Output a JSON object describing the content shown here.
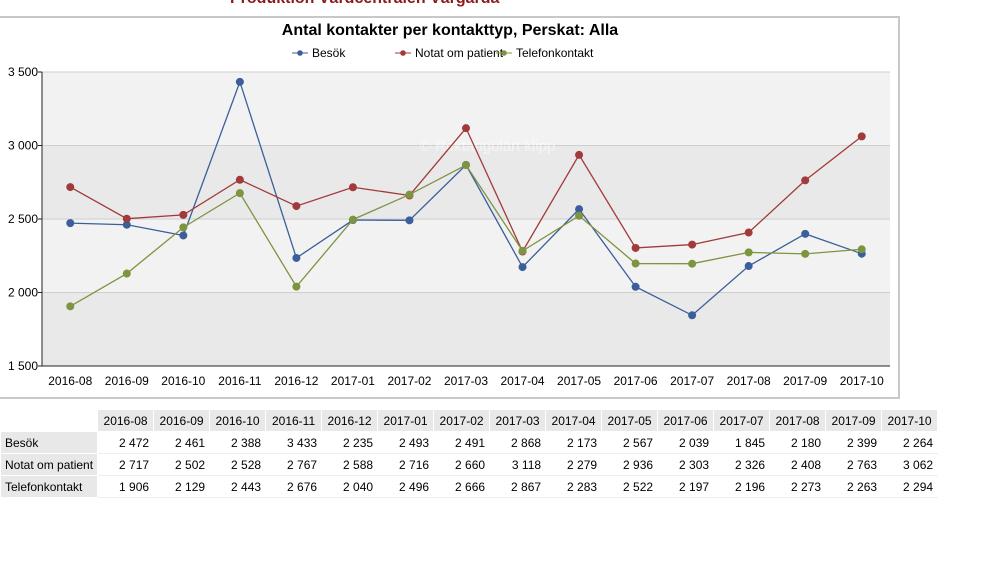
{
  "page": {
    "top_title": "Produktion Vårdcentralen Vårgårda"
  },
  "chart_data": {
    "type": "line",
    "title": "Antal kontakter per kontakttyp, Perskat: Alla",
    "categories": [
      "2016-08",
      "2016-09",
      "2016-10",
      "2016-11",
      "2016-12",
      "2017-01",
      "2017-02",
      "2017-03",
      "2017-04",
      "2017-05",
      "2017-06",
      "2017-07",
      "2017-08",
      "2017-09",
      "2017-10"
    ],
    "ylim": [
      1500,
      3500
    ],
    "yticks": [
      1500,
      2000,
      2500,
      3000,
      3500
    ],
    "ytick_labels": [
      "1 500",
      "2 000",
      "2 500",
      "3 000",
      "3 500"
    ],
    "grid": true,
    "legend_position": "top-center",
    "watermark": "© Rektangulärt klipp",
    "series": [
      {
        "name": "Besök",
        "color": "#3a5f9a",
        "values": [
          2472,
          2461,
          2388,
          3433,
          2235,
          2493,
          2491,
          2868,
          2173,
          2567,
          2039,
          1845,
          2180,
          2399,
          2264
        ]
      },
      {
        "name": "Notat om patient",
        "color": "#a13a3a",
        "values": [
          2717,
          2502,
          2528,
          2767,
          2588,
          2716,
          2660,
          3118,
          2279,
          2936,
          2303,
          2326,
          2408,
          2763,
          3062
        ]
      },
      {
        "name": "Telefonkontakt",
        "color": "#7d9440",
        "values": [
          1906,
          2129,
          2443,
          2676,
          2040,
          2496,
          2666,
          2867,
          2283,
          2522,
          2197,
          2196,
          2273,
          2263,
          2294
        ]
      }
    ]
  },
  "table": {
    "columns": [
      "2016-08",
      "2016-09",
      "2016-10",
      "2016-11",
      "2016-12",
      "2017-01",
      "2017-02",
      "2017-03",
      "2017-04",
      "2017-05",
      "2017-06",
      "2017-07",
      "2017-08",
      "2017-09",
      "2017-10"
    ],
    "rows": [
      {
        "label": "Besök",
        "cells": [
          "2 472",
          "2 461",
          "2 388",
          "3 433",
          "2 235",
          "2 493",
          "2 491",
          "2 868",
          "2 173",
          "2 567",
          "2 039",
          "1 845",
          "2 180",
          "2 399",
          "2 264"
        ]
      },
      {
        "label": "Notat om patient",
        "cells": [
          "2 717",
          "2 502",
          "2 528",
          "2 767",
          "2 588",
          "2 716",
          "2 660",
          "3 118",
          "2 279",
          "2 936",
          "2 303",
          "2 326",
          "2 408",
          "2 763",
          "3 062"
        ]
      },
      {
        "label": "Telefonkontakt",
        "cells": [
          "1 906",
          "2 129",
          "2 443",
          "2 676",
          "2 040",
          "2 496",
          "2 666",
          "2 867",
          "2 283",
          "2 522",
          "2 197",
          "2 196",
          "2 273",
          "2 263",
          "2 294"
        ]
      }
    ]
  }
}
